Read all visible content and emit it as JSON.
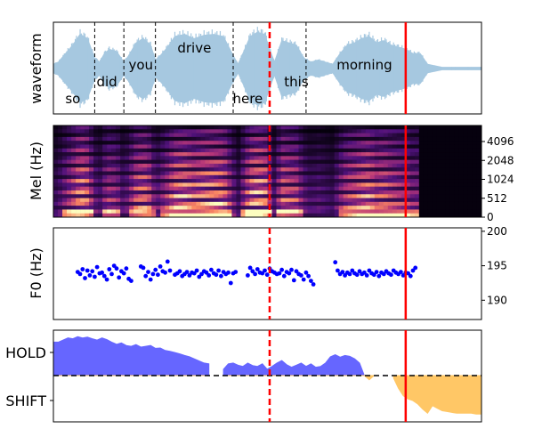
{
  "chart_data": [
    {
      "type": "area",
      "panel": "waveform",
      "ylabel": "waveform",
      "words": [
        {
          "text": "so",
          "t": 0.4
        },
        {
          "text": "did",
          "t": 1.1
        },
        {
          "text": "you",
          "t": 1.8
        },
        {
          "text": "drive",
          "t": 2.9
        },
        {
          "text": "here",
          "t": 4.0
        },
        {
          "text": "this",
          "t": 5.0
        },
        {
          "text": "morning",
          "t": 6.4
        }
      ],
      "word_boundaries": [
        0.85,
        1.45,
        2.1,
        3.7,
        5.2
      ],
      "envelope": {
        "t": [
          0.0,
          0.1,
          0.25,
          0.4,
          0.55,
          0.7,
          0.85,
          0.95,
          1.05,
          1.15,
          1.3,
          1.45,
          1.55,
          1.7,
          1.85,
          2.0,
          2.1,
          2.2,
          2.35,
          2.5,
          2.7,
          2.9,
          3.1,
          3.3,
          3.5,
          3.7,
          3.8,
          3.9,
          4.05,
          4.2,
          4.35,
          4.45,
          4.55,
          4.7,
          4.85,
          5.0,
          5.15,
          5.3,
          5.45,
          5.6,
          5.75,
          5.9,
          6.05,
          6.2,
          6.35,
          6.5,
          6.65,
          6.8,
          6.95,
          7.1,
          7.25,
          7.4,
          7.55,
          7.7,
          8.0,
          8.4,
          8.81
        ],
        "amp": [
          0.1,
          0.15,
          0.35,
          0.55,
          0.8,
          0.7,
          0.25,
          0.15,
          0.35,
          0.45,
          0.4,
          0.15,
          0.3,
          0.6,
          0.7,
          0.55,
          0.2,
          0.3,
          0.5,
          0.75,
          0.8,
          0.7,
          0.78,
          0.8,
          0.75,
          0.3,
          0.1,
          0.35,
          0.75,
          0.85,
          0.8,
          0.45,
          0.15,
          0.65,
          0.6,
          0.55,
          0.25,
          0.15,
          0.2,
          0.15,
          0.1,
          0.35,
          0.55,
          0.6,
          0.7,
          0.75,
          0.6,
          0.65,
          0.55,
          0.5,
          0.45,
          0.35,
          0.35,
          0.1,
          0.03,
          0.03,
          0.03
        ]
      },
      "xlim": [
        0,
        8.81
      ],
      "color": "#a6c8e0"
    },
    {
      "type": "heatmap",
      "panel": "spectrogram",
      "ylabel": "Mel (Hz)",
      "yticks": [
        "0",
        "512",
        "1024",
        "2048",
        "4096"
      ],
      "voice_end": 7.5
    },
    {
      "type": "scatter",
      "panel": "f0",
      "ylabel": "F0 (Hz)",
      "yticks": [
        190,
        195,
        200
      ],
      "ylim": [
        187.2,
        200.5
      ],
      "color": "#0000ff",
      "x": [
        0.5,
        0.55,
        0.6,
        0.65,
        0.7,
        0.75,
        0.8,
        0.85,
        0.9,
        0.95,
        1.0,
        1.05,
        1.1,
        1.15,
        1.2,
        1.25,
        1.3,
        1.35,
        1.4,
        1.45,
        1.5,
        1.55,
        1.6,
        1.8,
        1.85,
        1.9,
        1.95,
        2.0,
        2.05,
        2.1,
        2.15,
        2.2,
        2.25,
        2.3,
        2.35,
        2.4,
        2.5,
        2.55,
        2.6,
        2.65,
        2.7,
        2.75,
        2.8,
        2.85,
        2.9,
        2.95,
        3.0,
        3.05,
        3.1,
        3.15,
        3.2,
        3.25,
        3.3,
        3.35,
        3.4,
        3.45,
        3.5,
        3.55,
        3.6,
        3.65,
        3.7,
        3.75,
        4.0,
        4.05,
        4.1,
        4.15,
        4.2,
        4.25,
        4.3,
        4.35,
        4.4,
        4.45,
        4.5,
        4.55,
        4.6,
        4.65,
        4.7,
        4.75,
        4.8,
        4.85,
        4.9,
        4.95,
        5.0,
        5.05,
        5.1,
        5.15,
        5.2,
        5.25,
        5.3,
        5.35,
        5.8,
        5.85,
        5.9,
        5.95,
        6.0,
        6.05,
        6.1,
        6.15,
        6.2,
        6.25,
        6.3,
        6.35,
        6.4,
        6.45,
        6.5,
        6.55,
        6.6,
        6.65,
        6.7,
        6.75,
        6.8,
        6.85,
        6.9,
        6.95,
        7.0,
        7.05,
        7.1,
        7.15,
        7.2,
        7.25,
        7.3,
        7.35,
        7.4,
        7.45
      ],
      "y": [
        194.1,
        193.8,
        194.5,
        193.2,
        194.3,
        193.6,
        194.2,
        193.4,
        194.8,
        193.9,
        194.0,
        193.5,
        193.0,
        194.5,
        193.8,
        195.0,
        194.6,
        193.3,
        194.2,
        193.9,
        194.6,
        193.1,
        192.8,
        194.9,
        194.7,
        193.5,
        194.1,
        193.0,
        193.8,
        194.4,
        193.7,
        194.9,
        194.2,
        194.0,
        195.6,
        194.3,
        193.7,
        193.9,
        194.2,
        193.5,
        193.8,
        194.1,
        193.6,
        194.0,
        193.9,
        194.3,
        193.4,
        193.8,
        194.2,
        194.0,
        193.6,
        194.4,
        193.9,
        193.7,
        194.3,
        193.5,
        194.1,
        193.8,
        194.0,
        192.5,
        193.9,
        194.1,
        193.6,
        194.7,
        194.2,
        193.8,
        194.5,
        194.0,
        193.9,
        194.3,
        193.7,
        194.6,
        194.2,
        194.0,
        193.8,
        193.9,
        194.4,
        193.5,
        194.1,
        193.9,
        194.4,
        192.9,
        194.2,
        193.8,
        193.6,
        193.0,
        194.0,
        193.5,
        192.8,
        192.3,
        195.5,
        194.3,
        193.8,
        194.1,
        193.6,
        194.0,
        193.8,
        194.3,
        193.9,
        193.7,
        194.2,
        193.8,
        194.0,
        193.6,
        194.3,
        193.9,
        193.7,
        194.1,
        193.5,
        194.0,
        193.8,
        194.2,
        193.9,
        193.7,
        194.3,
        194.0,
        193.8,
        194.1,
        193.6,
        194.0,
        193.9,
        193.5,
        194.3,
        194.7
      ]
    },
    {
      "type": "area",
      "panel": "turn_prediction",
      "yticks": [
        "HOLD",
        "SHIFT"
      ],
      "hold_color": "#6666ff",
      "shift_color": "#ffc766",
      "x": [
        0.0,
        0.1,
        0.2,
        0.3,
        0.4,
        0.5,
        0.6,
        0.7,
        0.8,
        0.9,
        1.0,
        1.1,
        1.2,
        1.3,
        1.4,
        1.5,
        1.6,
        1.7,
        1.8,
        1.9,
        2.0,
        2.1,
        2.2,
        2.3,
        2.4,
        2.5,
        2.6,
        2.7,
        2.8,
        2.9,
        3.0,
        3.1,
        3.2,
        3.3,
        3.4,
        3.5,
        3.6,
        3.7,
        3.8,
        3.9,
        4.0,
        4.1,
        4.2,
        4.3,
        4.4,
        4.5,
        4.6,
        4.7,
        4.8,
        4.9,
        5.0,
        5.1,
        5.2,
        5.3,
        5.4,
        5.5,
        5.6,
        5.7,
        5.8,
        5.9,
        6.0,
        6.1,
        6.2,
        6.3,
        6.4,
        6.5,
        6.6,
        6.7,
        6.8,
        6.9,
        7.0,
        7.1,
        7.2,
        7.3,
        7.4,
        7.5,
        7.6,
        7.7,
        7.8,
        7.9,
        8.0,
        8.1,
        8.2,
        8.3,
        8.4,
        8.5,
        8.6,
        8.7,
        8.81
      ],
      "p": [
        0.8,
        0.8,
        0.85,
        0.9,
        0.88,
        0.93,
        0.9,
        0.92,
        0.88,
        0.85,
        0.9,
        0.86,
        0.8,
        0.75,
        0.78,
        0.72,
        0.7,
        0.74,
        0.68,
        0.7,
        0.72,
        0.65,
        0.66,
        0.6,
        0.58,
        0.55,
        0.52,
        0.48,
        0.45,
        0.4,
        0.35,
        0.3,
        0.28,
        null,
        null,
        0.15,
        0.28,
        0.3,
        0.25,
        0.22,
        0.3,
        0.24,
        0.22,
        0.28,
        0.15,
        0.22,
        0.3,
        0.36,
        0.26,
        0.2,
        0.25,
        0.3,
        0.22,
        0.28,
        0.2,
        0.22,
        0.3,
        0.45,
        0.5,
        0.44,
        0.48,
        0.46,
        0.4,
        0.3,
        0.0,
        -0.1,
        0.0,
        null,
        0.02,
        null,
        -0.06,
        -0.3,
        -0.48,
        -0.56,
        -0.6,
        -0.68,
        -0.8,
        -0.9,
        -0.72,
        -0.78,
        -0.84,
        -0.86,
        -0.88,
        -0.9,
        -0.9,
        -0.9,
        -0.9,
        -0.92,
        -0.92
      ],
      "ylim": [
        -1.0,
        1.0
      ]
    }
  ],
  "markers": {
    "dashed_red_t": 4.45,
    "solid_red_t": 7.25,
    "color": "#ff0000"
  }
}
